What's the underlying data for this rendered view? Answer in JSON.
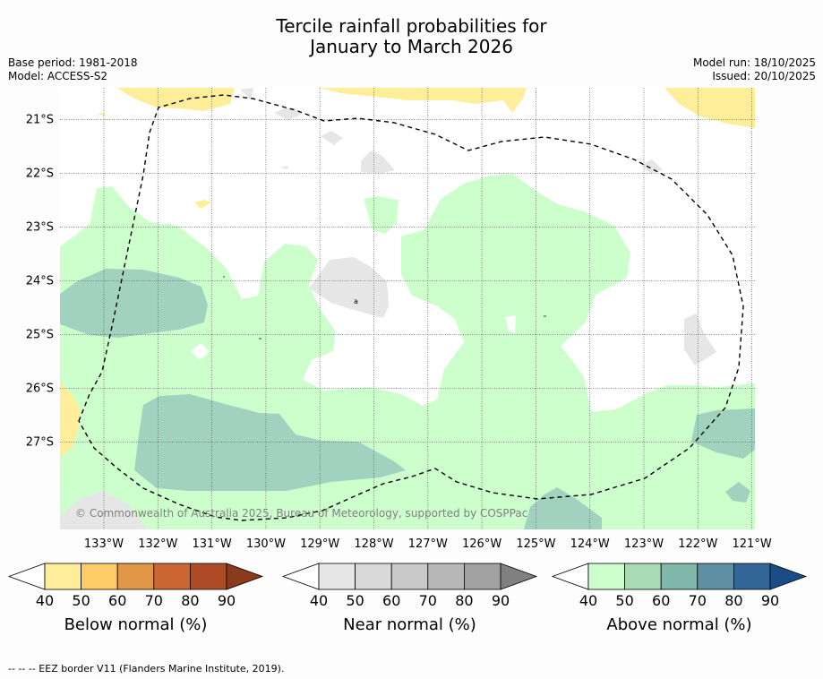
{
  "title": {
    "line1": "Tercile rainfall probabilities for",
    "line2": "January to March 2026"
  },
  "meta": {
    "base_period": "Base period: 1981-2018",
    "model": "Model: ACCESS-S2",
    "model_run": "Model run: 18/10/2025",
    "issued": "Issued: 20/10/2025"
  },
  "map": {
    "lat_labels": [
      "21°S",
      "22°S",
      "23°S",
      "24°S",
      "25°S",
      "26°S",
      "27°S"
    ],
    "lon_labels": [
      "133°W",
      "132°W",
      "131°W",
      "130°W",
      "129°W",
      "128°W",
      "127°W",
      "126°W",
      "125°W",
      "124°W",
      "123°W",
      "122°W",
      "121°W"
    ],
    "copyright": "© Commonwealth of Australia 2025, Bureau of Meteorology, supported by COSPPac",
    "small_mark": "a"
  },
  "legends": [
    {
      "label": "Below normal (%)",
      "ticks": [
        "40",
        "50",
        "60",
        "70",
        "80",
        "90"
      ],
      "colors": [
        "#ffffff",
        "#ffee99",
        "#fdcc66",
        "#e09748",
        "#cc6633",
        "#ad4c27",
        "#8c3a1e"
      ]
    },
    {
      "label": "Near normal (%)",
      "ticks": [
        "40",
        "50",
        "60",
        "70",
        "80",
        "90"
      ],
      "colors": [
        "#ffffff",
        "#e6e6e6",
        "#d9d9d9",
        "#c9c9c9",
        "#b8b8b8",
        "#a2a2a2",
        "#808080"
      ]
    },
    {
      "label": "Above normal (%)",
      "ticks": [
        "40",
        "50",
        "60",
        "70",
        "80",
        "90"
      ],
      "colors": [
        "#ffffff",
        "#ccffcc",
        "#a8dbb4",
        "#80b7ab",
        "#5d90a3",
        "#336699",
        "#1a4d85"
      ]
    }
  ],
  "footer": "--  --  -- EEZ border V11 (Flanders Marine Institute, 2019)."
}
